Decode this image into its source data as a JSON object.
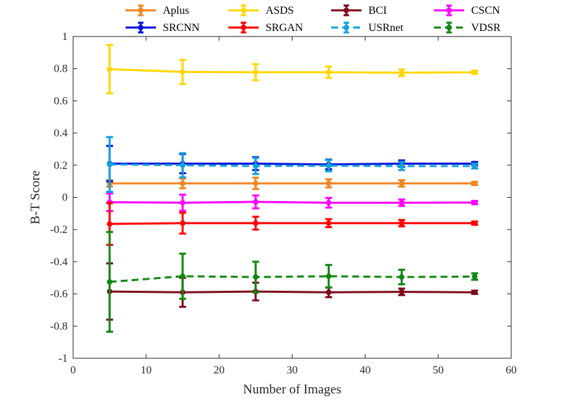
{
  "chart_data": {
    "type": "line",
    "title": "",
    "xlabel": "Number of Images",
    "ylabel": "B-T Score",
    "xlim": [
      0,
      60
    ],
    "ylim": [
      -1,
      1
    ],
    "xticks": [
      0,
      10,
      20,
      30,
      40,
      50,
      60
    ],
    "yticks": [
      -1,
      -0.8,
      -0.6,
      -0.4,
      -0.2,
      0,
      0.2,
      0.4,
      0.6,
      0.8,
      1
    ],
    "xtick_labels": [
      "0",
      "10",
      "20",
      "30",
      "40",
      "50",
      "60"
    ],
    "ytick_labels": [
      "-1",
      "-0.8",
      "-0.6",
      "-0.4",
      "-0.2",
      "0",
      "0.2",
      "0.4",
      "0.6",
      "0.8",
      "1"
    ],
    "grid": false,
    "legend_position": "top",
    "x": [
      5,
      15,
      25,
      35,
      45,
      55
    ],
    "series": [
      {
        "name": "Aplus",
        "color": "#f28522",
        "dashed": false,
        "values": [
          0.087,
          0.087,
          0.087,
          0.087,
          0.087,
          0.087
        ],
        "errors": [
          0.02,
          0.03,
          0.035,
          0.025,
          0.02,
          0.01
        ]
      },
      {
        "name": "ASDS",
        "color": "#ffd700",
        "dashed": false,
        "values": [
          0.797,
          0.78,
          0.778,
          0.778,
          0.775,
          0.778
        ],
        "errors": [
          0.15,
          0.075,
          0.05,
          0.035,
          0.02,
          0.01
        ]
      },
      {
        "name": "BCI",
        "color": "#7e0a1c",
        "dashed": false,
        "values": [
          -0.585,
          -0.59,
          -0.585,
          -0.59,
          -0.587,
          -0.59
        ],
        "errors": [
          0.175,
          0.09,
          0.055,
          0.03,
          0.02,
          0.01
        ]
      },
      {
        "name": "CSCN",
        "color": "#ff00ff",
        "dashed": false,
        "values": [
          -0.03,
          -0.033,
          -0.028,
          -0.033,
          -0.033,
          -0.032
        ],
        "errors": [
          0.055,
          0.05,
          0.04,
          0.03,
          0.02,
          0.01
        ]
      },
      {
        "name": "SRCNN",
        "color": "#0015d8",
        "dashed": false,
        "values": [
          0.21,
          0.21,
          0.21,
          0.205,
          0.21,
          0.21
        ],
        "errors": [
          0.11,
          0.06,
          0.04,
          0.03,
          0.02,
          0.01
        ]
      },
      {
        "name": "SRGAN",
        "color": "#ff0000",
        "dashed": false,
        "values": [
          -0.165,
          -0.16,
          -0.16,
          -0.16,
          -0.16,
          -0.16
        ],
        "errors": [
          0.13,
          0.065,
          0.04,
          0.025,
          0.02,
          0.01
        ]
      },
      {
        "name": "USRnet",
        "color": "#12a0e0",
        "dashed": true,
        "values": [
          0.205,
          0.2,
          0.195,
          0.197,
          0.195,
          0.195
        ],
        "errors": [
          0.17,
          0.075,
          0.05,
          0.035,
          0.025,
          0.015
        ]
      },
      {
        "name": "VDSR",
        "color": "#118811",
        "dashed": true,
        "values": [
          -0.525,
          -0.49,
          -0.495,
          -0.49,
          -0.495,
          -0.492
        ],
        "errors": [
          0.31,
          0.14,
          0.095,
          0.07,
          0.045,
          0.02
        ]
      }
    ]
  }
}
